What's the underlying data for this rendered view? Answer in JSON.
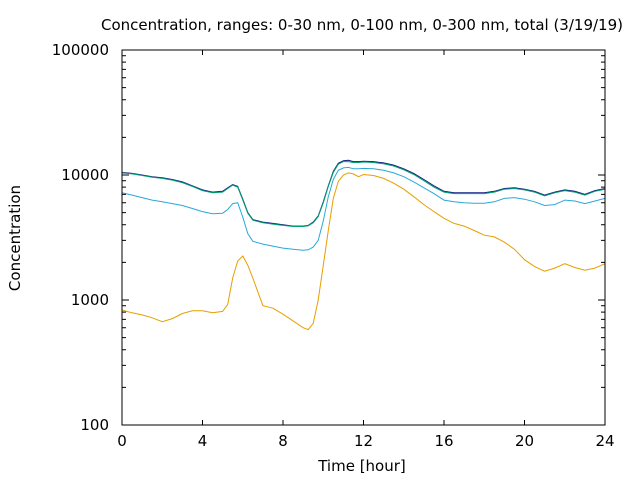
{
  "chart_data": {
    "type": "line",
    "title": "Concentration, ranges: 0-30 nm, 0-100 nm, 0-300 nm, total (3/19/19)",
    "xlabel": "Time [hour]",
    "ylabel": "Concentration",
    "xlim": [
      0,
      24
    ],
    "ylim": [
      100,
      100000
    ],
    "yscale": "log",
    "grid": false,
    "legend": "none",
    "x_ticks": [
      "0",
      "4",
      "8",
      "12",
      "16",
      "20",
      "24"
    ],
    "y_ticks": [
      "100",
      "1000",
      "10000",
      "100000"
    ],
    "x": [
      0,
      0.5,
      1,
      1.5,
      2,
      2.5,
      3,
      3.5,
      4,
      4.5,
      5,
      5.25,
      5.5,
      5.75,
      6,
      6.25,
      6.5,
      7,
      7.5,
      8,
      8.5,
      9,
      9.25,
      9.5,
      9.75,
      10,
      10.25,
      10.5,
      10.75,
      11,
      11.25,
      11.5,
      11.75,
      12,
      12.5,
      13,
      13.5,
      14,
      14.5,
      15,
      15.5,
      16,
      16.5,
      17,
      17.5,
      18,
      18.5,
      19,
      19.5,
      20,
      20.5,
      21,
      21.5,
      22,
      22.5,
      23,
      23.5,
      24
    ],
    "series": [
      {
        "color": "#0f1e82",
        "values": [
          10500,
          10300,
          10000,
          9700,
          9500,
          9200,
          8800,
          8200,
          7600,
          7300,
          7400,
          7900,
          8400,
          8100,
          6400,
          5000,
          4400,
          4200,
          4100,
          4000,
          3900,
          3900,
          3950,
          4200,
          4700,
          6100,
          8200,
          10700,
          12400,
          13000,
          13100,
          12800,
          12800,
          12900,
          12800,
          12500,
          12000,
          11200,
          10300,
          9200,
          8200,
          7400,
          7200,
          7200,
          7200,
          7200,
          7400,
          7800,
          7900,
          7700,
          7400,
          6900,
          7300,
          7600,
          7400,
          7000,
          7500,
          7800
        ]
      },
      {
        "color": "#009e73",
        "values": [
          10400,
          10200,
          9900,
          9600,
          9400,
          9100,
          8700,
          8100,
          7500,
          7200,
          7300,
          7800,
          8300,
          8000,
          6300,
          4950,
          4350,
          4150,
          4050,
          3950,
          3870,
          3870,
          3920,
          4150,
          4650,
          6000,
          8100,
          10500,
          12200,
          12800,
          12800,
          12600,
          12600,
          12700,
          12600,
          12300,
          11800,
          11000,
          10100,
          9000,
          8000,
          7300,
          7100,
          7100,
          7100,
          7100,
          7300,
          7700,
          7800,
          7600,
          7300,
          6800,
          7200,
          7500,
          7300,
          6900,
          7400,
          7700
        ]
      },
      {
        "color": "#2aa9d8",
        "values": [
          7200,
          6900,
          6600,
          6300,
          6100,
          5900,
          5700,
          5400,
          5100,
          4900,
          4950,
          5300,
          5900,
          6000,
          4600,
          3400,
          2950,
          2800,
          2700,
          2600,
          2550,
          2500,
          2520,
          2650,
          3000,
          4300,
          6700,
          9200,
          10900,
          11400,
          11500,
          11200,
          11200,
          11300,
          11200,
          10900,
          10400,
          9700,
          8800,
          7900,
          7100,
          6300,
          6100,
          6000,
          5950,
          5950,
          6100,
          6500,
          6600,
          6400,
          6100,
          5700,
          5800,
          6300,
          6200,
          5900,
          6200,
          6500
        ]
      },
      {
        "color": "#e69f00",
        "values": [
          830,
          790,
          760,
          720,
          670,
          710,
          780,
          820,
          820,
          790,
          810,
          920,
          1500,
          2050,
          2250,
          1900,
          1500,
          900,
          860,
          770,
          680,
          600,
          580,
          650,
          1000,
          1900,
          3600,
          6500,
          8900,
          10000,
          10400,
          10200,
          9700,
          10100,
          9900,
          9400,
          8600,
          7700,
          6700,
          5800,
          5100,
          4500,
          4100,
          3900,
          3600,
          3300,
          3200,
          2900,
          2550,
          2100,
          1850,
          1700,
          1800,
          1950,
          1820,
          1730,
          1800,
          1950
        ]
      }
    ]
  }
}
